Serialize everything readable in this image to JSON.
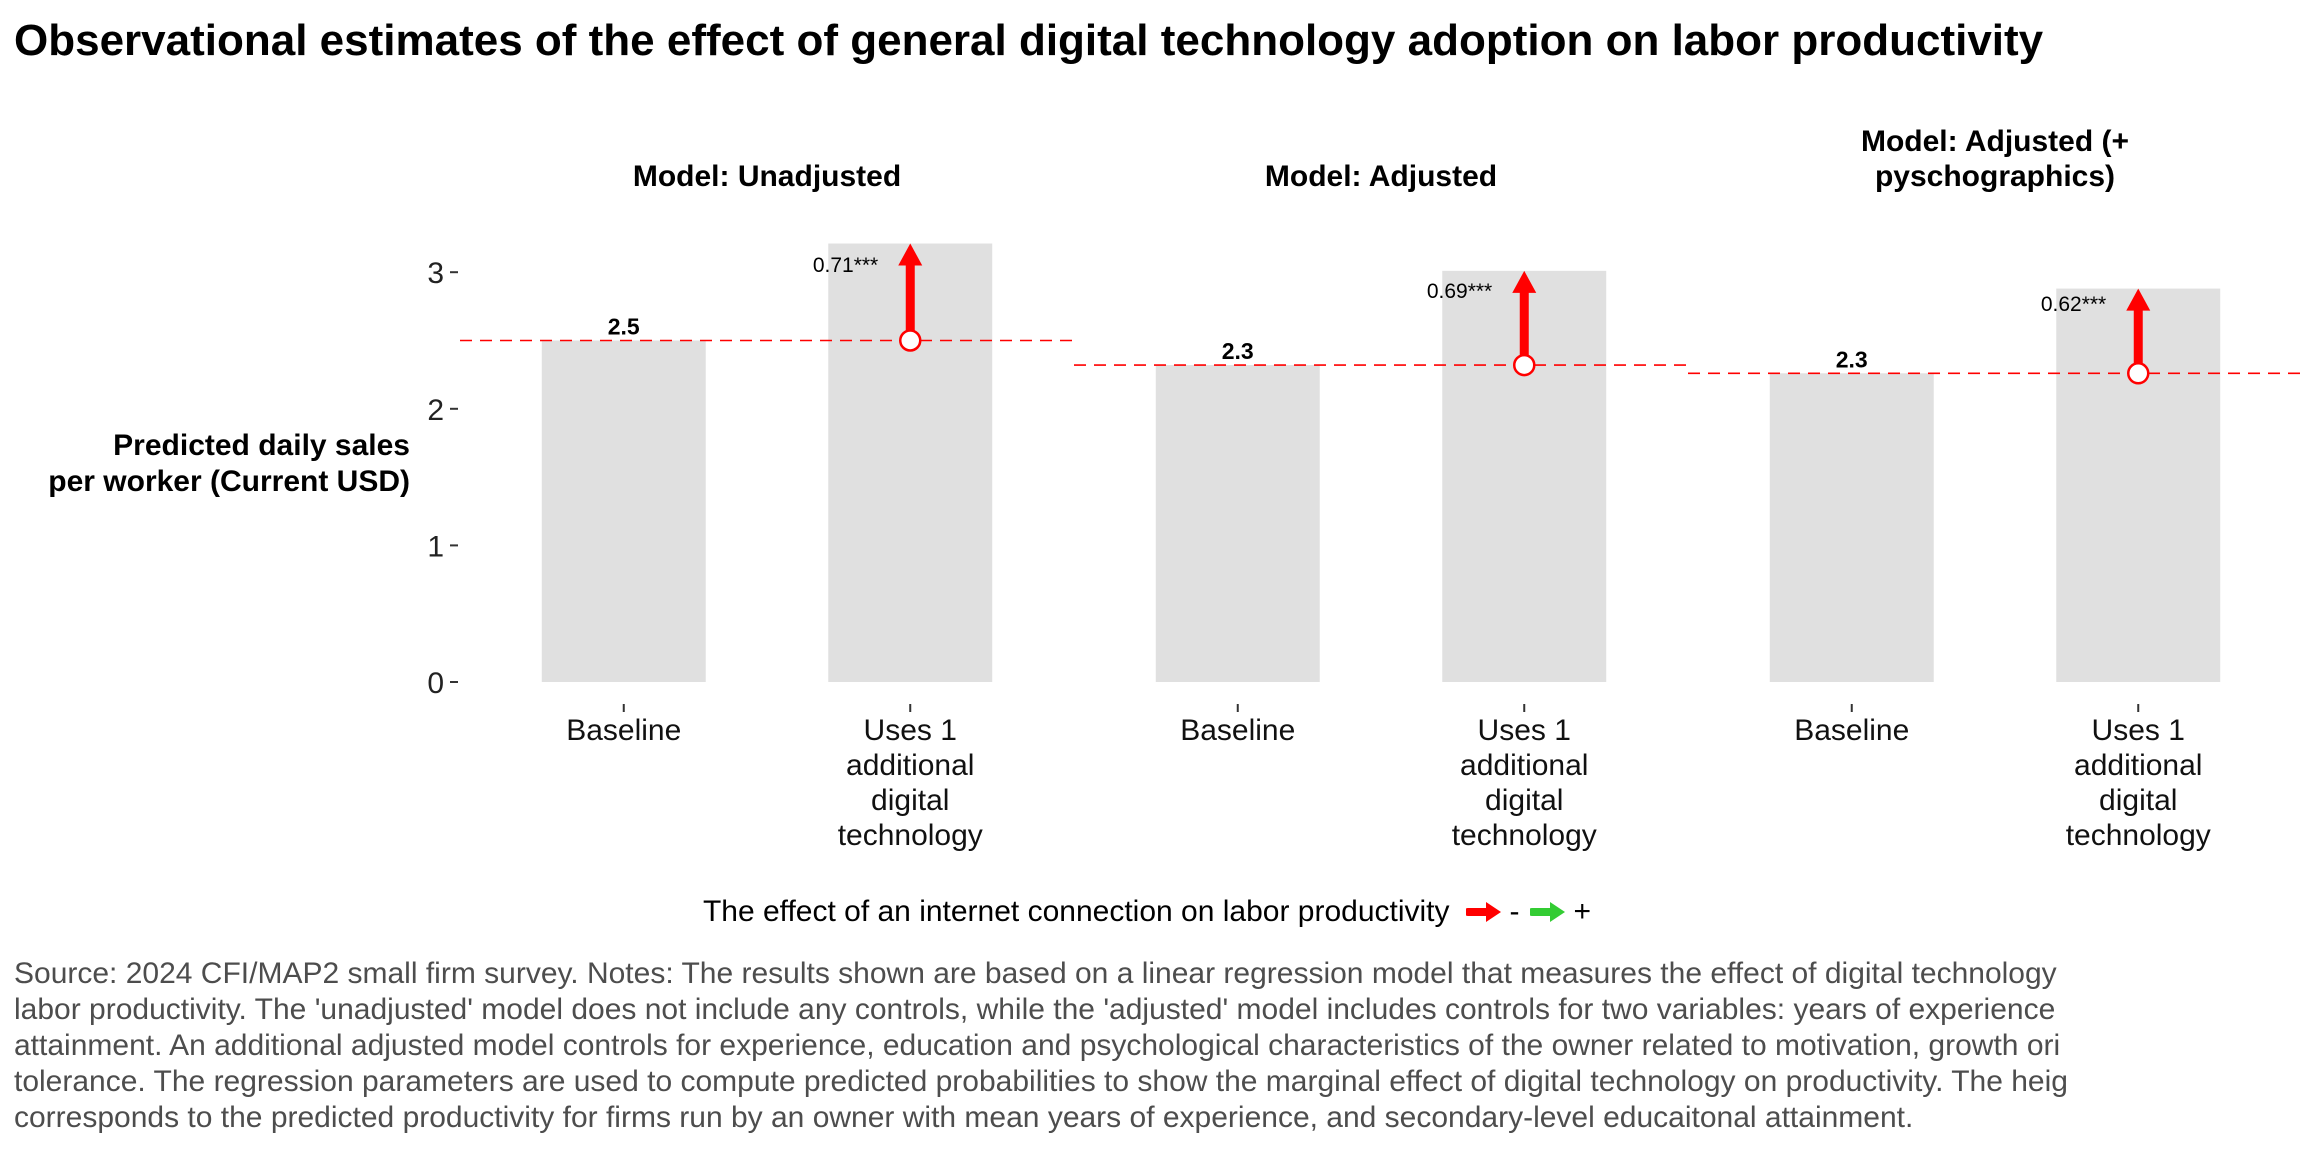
{
  "title": "Observational estimates of the effect of general digital technology adoption on labor productivity",
  "chart_data": {
    "type": "bar",
    "ylabel": [
      "Predicted daily sales",
      "per worker (Current USD)"
    ],
    "ylim": [
      0,
      3.2
    ],
    "yticks": [
      "0",
      "1",
      "2",
      "3"
    ],
    "grid": false,
    "categories": [
      [
        "Baseline"
      ],
      [
        "Uses 1",
        "additional",
        "digital",
        "technology"
      ]
    ],
    "bar_color": "#e0e0e0",
    "facets": [
      {
        "title": [
          "Model: Unadjusted"
        ],
        "baseline": 2.5,
        "baseline_label": "2.5",
        "with_tech": 3.21,
        "effect_label": "0.71***",
        "effect_direction": "+"
      },
      {
        "title": [
          "Model: Adjusted"
        ],
        "baseline": 2.32,
        "baseline_label": "2.3",
        "with_tech": 3.01,
        "effect_label": "0.69***",
        "effect_direction": "+"
      },
      {
        "title": [
          "Model: Adjusted (+",
          "pyschographics)"
        ],
        "baseline": 2.26,
        "baseline_label": "2.3",
        "with_tech": 2.88,
        "effect_label": "0.62***",
        "effect_direction": "+"
      }
    ],
    "arrow_colors": {
      "negative": "#ff0000",
      "positive": "#33cc33"
    },
    "reference_line_color": "#ff0000"
  },
  "legend": {
    "title": "The effect of an internet connection on labor productivity",
    "items": [
      {
        "label": "-",
        "color": "#ff0000",
        "icon": "red-arrow-icon"
      },
      {
        "label": "+",
        "color": "#33cc33",
        "icon": "green-arrow-icon"
      }
    ]
  },
  "caption": [
    "Source: 2024 CFI/MAP2 small firm survey. Notes: The results shown are based on a linear regression model that measures the effect of digital technology",
    "labor productivity. The 'unadjusted' model does not include any controls, while the 'adjusted' model includes controls for two variables: years of experience",
    "attainment. An additional adjusted model controls for experience, education and psychological characteristics of the owner related to motivation, growth ori",
    "tolerance. The regression parameters are used to compute predicted probabilities to show the marginal effect of digital technology on productivity. The heig",
    "corresponds to the predicted productivity for firms run by an owner with mean years of experience, and secondary-level educaitonal attainment."
  ]
}
